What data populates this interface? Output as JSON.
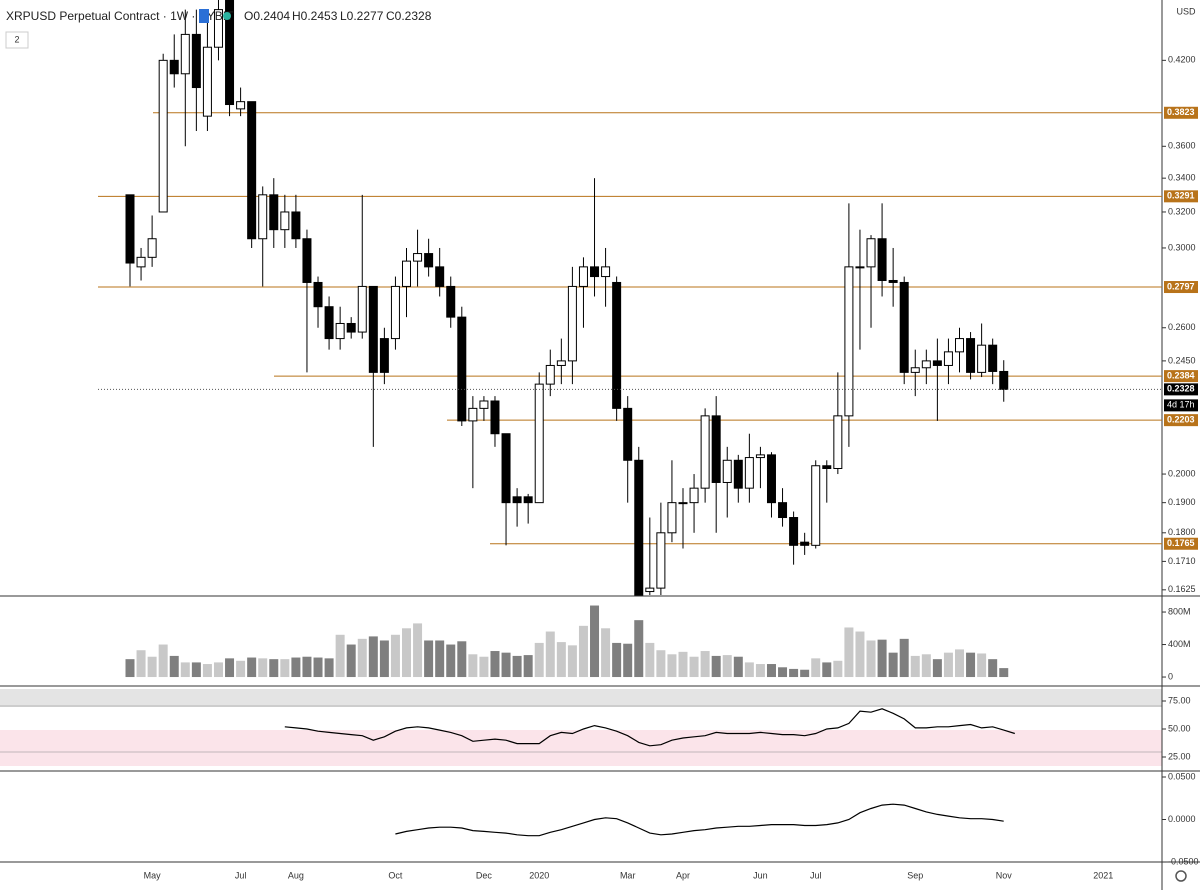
{
  "header": {
    "title": "XRPUSD Perpetual Contract · 1W · BYBIT",
    "legend": [
      "O0.2404",
      "H0.2453",
      "L0.2277",
      "C0.2328"
    ],
    "indicator_count": "2",
    "currency": "USD",
    "countdown": "4d 17h"
  },
  "chart_data": [
    {
      "type": "candlestick",
      "log_scale": true,
      "categories": [
        null,
        null,
        "May",
        null,
        null,
        null,
        null,
        null,
        null,
        null,
        "Jul",
        null,
        null,
        null,
        null,
        "Aug",
        null,
        null,
        null,
        null,
        null,
        null,
        null,
        null,
        "Oct",
        null,
        null,
        null,
        null,
        null,
        null,
        null,
        "Dec",
        null,
        null,
        null,
        null,
        "2020",
        null,
        null,
        null,
        null,
        null,
        null,
        null,
        "Mar",
        null,
        null,
        null,
        null,
        "Apr",
        null,
        null,
        null,
        null,
        null,
        null,
        "Jun",
        null,
        null,
        null,
        null,
        "Jul",
        null,
        null,
        null,
        null,
        null,
        null,
        null,
        null,
        "Sep",
        null,
        null,
        null,
        null,
        null,
        null,
        null,
        "Nov",
        null,
        null,
        null,
        null,
        null,
        null,
        null,
        null,
        "2021"
      ],
      "open": [
        0.33,
        0.29,
        0.295,
        0.32,
        0.42,
        0.41,
        0.44,
        0.38,
        0.43,
        0.468,
        0.385,
        0.39,
        0.305,
        0.33,
        0.31,
        0.32,
        0.305,
        0.282,
        0.27,
        0.255,
        0.262,
        0.258,
        0.28,
        0.255,
        0.255,
        0.28,
        0.293,
        0.297,
        0.29,
        0.28,
        0.265,
        0.22,
        0.225,
        0.228,
        0.215,
        0.192,
        0.192,
        0.19,
        0.235,
        0.243,
        0.245,
        0.28,
        0.29,
        0.285,
        0.282,
        0.225,
        0.205,
        0.162,
        0.163,
        0.18,
        0.19,
        0.19,
        0.195,
        0.222,
        0.197,
        0.205,
        0.195,
        0.206,
        0.207,
        0.19,
        0.185,
        0.177,
        0.176,
        0.203,
        0.202,
        0.222,
        0.29,
        0.29,
        0.305,
        0.283,
        0.282,
        0.24,
        0.242,
        0.245,
        0.243,
        0.249,
        0.255,
        0.24,
        0.252,
        0.2404,
        null,
        null,
        null,
        null,
        null,
        null,
        null,
        null,
        null
      ],
      "high": [
        0.33,
        0.3,
        0.318,
        0.425,
        0.44,
        0.46,
        0.46,
        0.46,
        0.468,
        0.468,
        0.4,
        0.39,
        0.335,
        0.34,
        0.33,
        0.33,
        0.31,
        0.285,
        0.275,
        0.27,
        0.265,
        0.33,
        0.28,
        0.26,
        0.285,
        0.3,
        0.31,
        0.305,
        0.3,
        0.285,
        0.27,
        0.23,
        0.23,
        0.23,
        0.215,
        0.195,
        0.193,
        0.24,
        0.25,
        0.255,
        0.29,
        0.295,
        0.34,
        0.3,
        0.285,
        0.23,
        0.21,
        0.185,
        0.19,
        0.205,
        0.195,
        0.2,
        0.225,
        0.23,
        0.21,
        0.207,
        0.215,
        0.21,
        0.208,
        0.195,
        0.187,
        0.18,
        0.205,
        0.205,
        0.24,
        0.325,
        0.31,
        0.307,
        0.325,
        0.3,
        0.285,
        0.25,
        0.25,
        0.255,
        0.255,
        0.26,
        0.258,
        0.262,
        0.255,
        0.2453,
        null,
        null,
        null,
        null,
        null,
        null,
        null,
        null,
        null
      ],
      "low": [
        0.28,
        0.283,
        0.29,
        0.32,
        0.4,
        0.36,
        0.37,
        0.37,
        0.42,
        0.38,
        0.38,
        0.3,
        0.28,
        0.3,
        0.3,
        0.3,
        0.24,
        0.26,
        0.25,
        0.25,
        0.255,
        0.255,
        0.21,
        0.235,
        0.25,
        0.265,
        0.28,
        0.285,
        0.275,
        0.26,
        0.218,
        0.195,
        0.22,
        0.21,
        0.176,
        0.182,
        0.183,
        0.19,
        0.23,
        0.235,
        0.235,
        0.26,
        0.275,
        0.27,
        0.22,
        0.19,
        0.161,
        0.161,
        0.161,
        0.177,
        0.175,
        0.18,
        0.19,
        0.18,
        0.185,
        0.19,
        0.19,
        0.195,
        0.185,
        0.182,
        0.17,
        0.173,
        0.175,
        0.19,
        0.2,
        0.21,
        0.25,
        0.26,
        0.275,
        0.27,
        0.235,
        0.23,
        0.235,
        0.22,
        0.235,
        0.24,
        0.237,
        0.238,
        0.235,
        0.2277,
        null,
        null,
        null,
        null,
        null,
        null,
        null,
        null,
        null
      ],
      "close": [
        0.292,
        0.295,
        0.305,
        0.42,
        0.41,
        0.44,
        0.4,
        0.43,
        0.46,
        0.388,
        0.39,
        0.305,
        0.33,
        0.31,
        0.32,
        0.305,
        0.282,
        0.27,
        0.255,
        0.262,
        0.258,
        0.28,
        0.24,
        0.24,
        0.28,
        0.293,
        0.297,
        0.29,
        0.28,
        0.265,
        0.22,
        0.225,
        0.228,
        0.215,
        0.19,
        0.19,
        0.19,
        0.235,
        0.243,
        0.245,
        0.28,
        0.29,
        0.285,
        0.29,
        0.225,
        0.205,
        0.161,
        0.163,
        0.18,
        0.19,
        0.19,
        0.195,
        0.222,
        0.197,
        0.205,
        0.195,
        0.206,
        0.207,
        0.19,
        0.185,
        0.176,
        0.176,
        0.203,
        0.202,
        0.222,
        0.29,
        0.29,
        0.305,
        0.283,
        0.282,
        0.24,
        0.242,
        0.245,
        0.243,
        0.249,
        0.255,
        0.24,
        0.252,
        0.2404,
        0.2328,
        null,
        null,
        null,
        null,
        null,
        null,
        null,
        null,
        null
      ],
      "up_color": "#ffffff",
      "down_color": "#000000",
      "level_color": "#b8731a",
      "ylim": [
        0.161,
        0.468
      ],
      "yticks": [
        {
          "value": 0.42,
          "label": "0.4200"
        },
        {
          "value": 0.36,
          "label": "0.3600"
        },
        {
          "value": 0.34,
          "label": "0.3400"
        },
        {
          "value": 0.32,
          "label": "0.3200"
        },
        {
          "value": 0.3,
          "label": "0.3000"
        },
        {
          "value": 0.26,
          "label": "0.2600"
        },
        {
          "value": 0.245,
          "label": "0.2450"
        },
        {
          "value": 0.2,
          "label": "0.2000"
        },
        {
          "value": 0.19,
          "label": "0.1900"
        },
        {
          "value": 0.18,
          "label": "0.1800"
        },
        {
          "value": 0.171,
          "label": "0.1710"
        },
        0.1625
      ],
      "levels": [
        0.3823,
        0.3291,
        0.2797,
        0.2384,
        0.2203,
        0.1765
      ],
      "last_price": 0.2328
    },
    {
      "type": "bar",
      "up_color": "#c8c8c8",
      "down_color": "#7f7f7f",
      "values": [
        220000000,
        330000000,
        250000000,
        400000000,
        260000000,
        180000000,
        180000000,
        160000000,
        180000000,
        230000000,
        200000000,
        240000000,
        230000000,
        220000000,
        220000000,
        240000000,
        250000000,
        240000000,
        230000000,
        520000000,
        400000000,
        470000000,
        500000000,
        450000000,
        520000000,
        600000000,
        660000000,
        450000000,
        450000000,
        400000000,
        440000000,
        280000000,
        250000000,
        320000000,
        300000000,
        260000000,
        270000000,
        420000000,
        560000000,
        430000000,
        390000000,
        630000000,
        880000000,
        600000000,
        420000000,
        410000000,
        700000000,
        420000000,
        330000000,
        280000000,
        310000000,
        250000000,
        320000000,
        260000000,
        270000000,
        250000000,
        180000000,
        160000000,
        160000000,
        120000000,
        100000000,
        90000000,
        230000000,
        180000000,
        200000000,
        610000000,
        560000000,
        450000000,
        460000000,
        300000000,
        470000000,
        260000000,
        280000000,
        220000000,
        300000000,
        340000000,
        300000000,
        290000000,
        220000000,
        110000000,
        null,
        null,
        null,
        null,
        null,
        null,
        null,
        null,
        null
      ],
      "ylim": [
        -98000000,
        985000000
      ],
      "yticks": [
        {
          "value": 800000000,
          "label": "800M"
        },
        {
          "value": 400000000,
          "label": "400M"
        },
        0
      ]
    },
    {
      "type": "line",
      "color": "#000000",
      "values": [
        null,
        null,
        null,
        null,
        null,
        null,
        null,
        null,
        null,
        null,
        null,
        null,
        null,
        null,
        52,
        51,
        50,
        48,
        47,
        46,
        45,
        44,
        40,
        43,
        48,
        51,
        52,
        51,
        49,
        47,
        44,
        39,
        40,
        41,
        40,
        37,
        37,
        37,
        44,
        47,
        46,
        50,
        53,
        51,
        48,
        44,
        38,
        35,
        36,
        40,
        42,
        43,
        44,
        47,
        46,
        46,
        46,
        47,
        46,
        45,
        45,
        44,
        46,
        50,
        51,
        55,
        66,
        65,
        68,
        64,
        59,
        51,
        51,
        52,
        52,
        53,
        54,
        51,
        52,
        49,
        46,
        null,
        null,
        null,
        null,
        null,
        null,
        null,
        null
      ],
      "ylim": [
        13.4,
        86.6
      ],
      "yticks": [
        {
          "value": 75,
          "label": "75.00"
        },
        {
          "value": 50,
          "label": "50.00"
        },
        {
          "value": 25,
          "label": "25.00"
        }
      ]
    },
    {
      "type": "line",
      "color": "#000000",
      "values": [
        null,
        null,
        null,
        null,
        null,
        null,
        null,
        null,
        null,
        null,
        null,
        null,
        null,
        null,
        null,
        null,
        null,
        null,
        null,
        null,
        null,
        null,
        null,
        null,
        -0.017,
        -0.014,
        -0.012,
        -0.01,
        -0.009,
        -0.009,
        -0.01,
        -0.013,
        -0.014,
        -0.015,
        -0.016,
        -0.018,
        -0.019,
        -0.019,
        -0.015,
        -0.012,
        -0.008,
        -0.004,
        0,
        0.002,
        0.001,
        -0.004,
        -0.01,
        -0.016,
        -0.018,
        -0.017,
        -0.015,
        -0.013,
        -0.012,
        -0.01,
        -0.009,
        -0.008,
        -0.008,
        -0.007,
        -0.006,
        -0.006,
        -0.006,
        -0.007,
        -0.007,
        -0.006,
        -0.004,
        0,
        0.008,
        0.013,
        0.017,
        0.018,
        0.017,
        0.013,
        0.009,
        0.006,
        0.004,
        0.002,
        0.001,
        0.001,
        0,
        -0.002,
        null,
        null,
        null,
        null,
        null,
        null,
        null,
        null,
        null
      ],
      "ylim": [
        -0.0488,
        0.0547
      ],
      "yticks": [
        {
          "value": 0.05,
          "label": "0.0500"
        },
        {
          "value": 0,
          "label": "0.0000"
        },
        {
          "value": -0.05,
          "label": "-0.0500"
        }
      ]
    }
  ]
}
